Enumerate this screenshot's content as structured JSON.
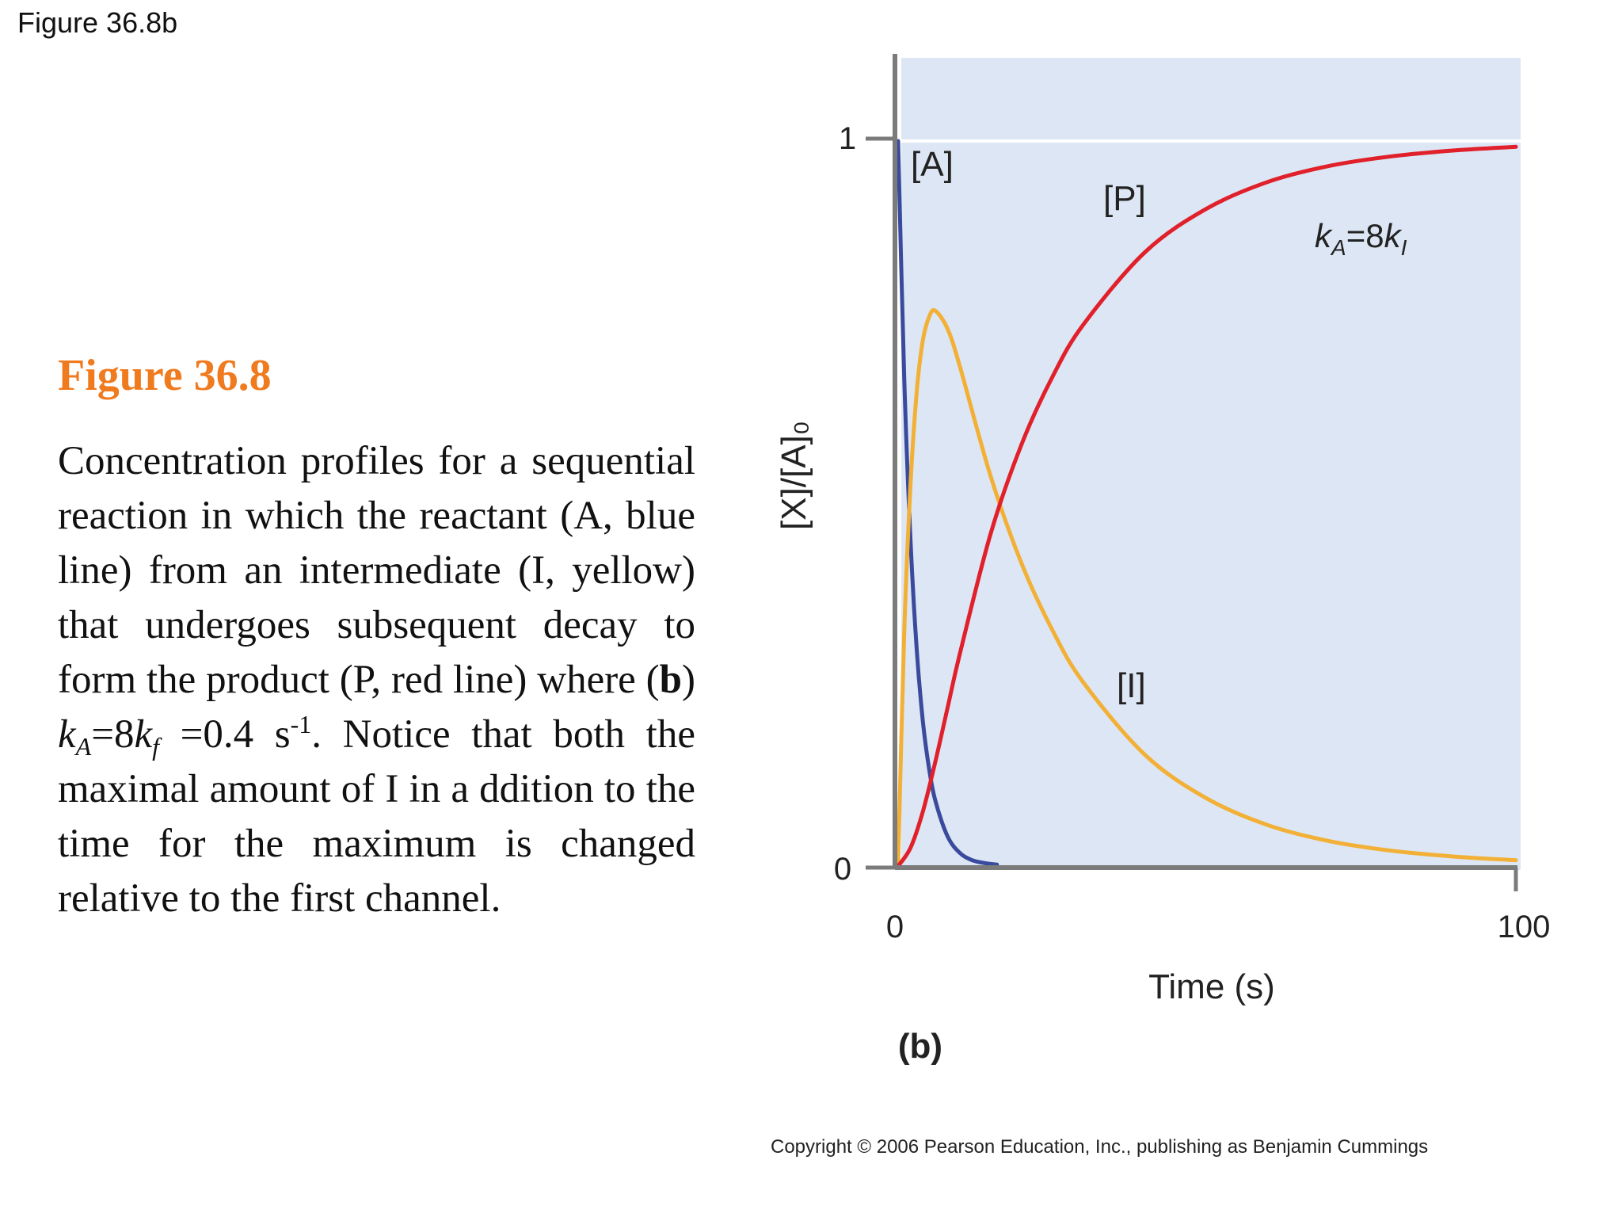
{
  "slide_tag": "Figure 36.8b",
  "figure_title": "Figure 36.8",
  "caption": {
    "part1": "Concentration profiles for a sequential reaction in which the reactant (A, blue line) from an intermediate (I, yellow) that undergoes subsequent decay to form the product (P, red line) where (",
    "bold_b": "b",
    "part2": ") ",
    "k": "k",
    "sub_A": "A",
    "eq1": "=8",
    "k2": "k",
    "sub_f": "f",
    "eq2": " =0.4 s",
    "sup": "-1",
    "part3": ". Notice that both the maximal amount of I in a ddition to the time for the maximum is changed relative to the first channel."
  },
  "copyright": "Copyright © 2006 Pearson Education, Inc., publishing as Benjamin Cummings",
  "chart_data": {
    "type": "line",
    "panel_label": "(b)",
    "xlabel": "Time (s)",
    "ylabel": "[X]/[A]₀",
    "xlim": [
      0,
      100
    ],
    "ylim": [
      0,
      1
    ],
    "x_ticks": [
      "0",
      "100"
    ],
    "y_ticks": [
      "0",
      "1"
    ],
    "annotation": "kA=8kI",
    "background": "#dde6f4",
    "grid": false,
    "series": [
      {
        "name": "[A]",
        "color": "#3a4a9c",
        "x": [
          0,
          1,
          2,
          3,
          4,
          5,
          6,
          8,
          10,
          12,
          14,
          16
        ],
        "y": [
          1,
          0.67,
          0.45,
          0.3,
          0.2,
          0.135,
          0.091,
          0.041,
          0.018,
          0.008,
          0.004,
          0.002
        ]
      },
      {
        "name": "[I]",
        "color": "#f2b036",
        "x": [
          0,
          1,
          2,
          3,
          4,
          5,
          6,
          8,
          10,
          15,
          20,
          25,
          30,
          40,
          50,
          60,
          70,
          80,
          90,
          100
        ],
        "y": [
          0,
          0.325,
          0.525,
          0.653,
          0.725,
          0.757,
          0.766,
          0.741,
          0.689,
          0.537,
          0.417,
          0.325,
          0.253,
          0.153,
          0.093,
          0.056,
          0.034,
          0.021,
          0.013,
          0.008
        ]
      },
      {
        "name": "[P]",
        "color": "#e0202a",
        "x": [
          0,
          2,
          4,
          6,
          8,
          10,
          15,
          20,
          25,
          30,
          40,
          50,
          60,
          70,
          80,
          90,
          100
        ],
        "y": [
          0,
          0.025,
          0.075,
          0.143,
          0.218,
          0.293,
          0.459,
          0.582,
          0.675,
          0.747,
          0.847,
          0.907,
          0.944,
          0.966,
          0.979,
          0.987,
          0.992
        ]
      }
    ]
  }
}
